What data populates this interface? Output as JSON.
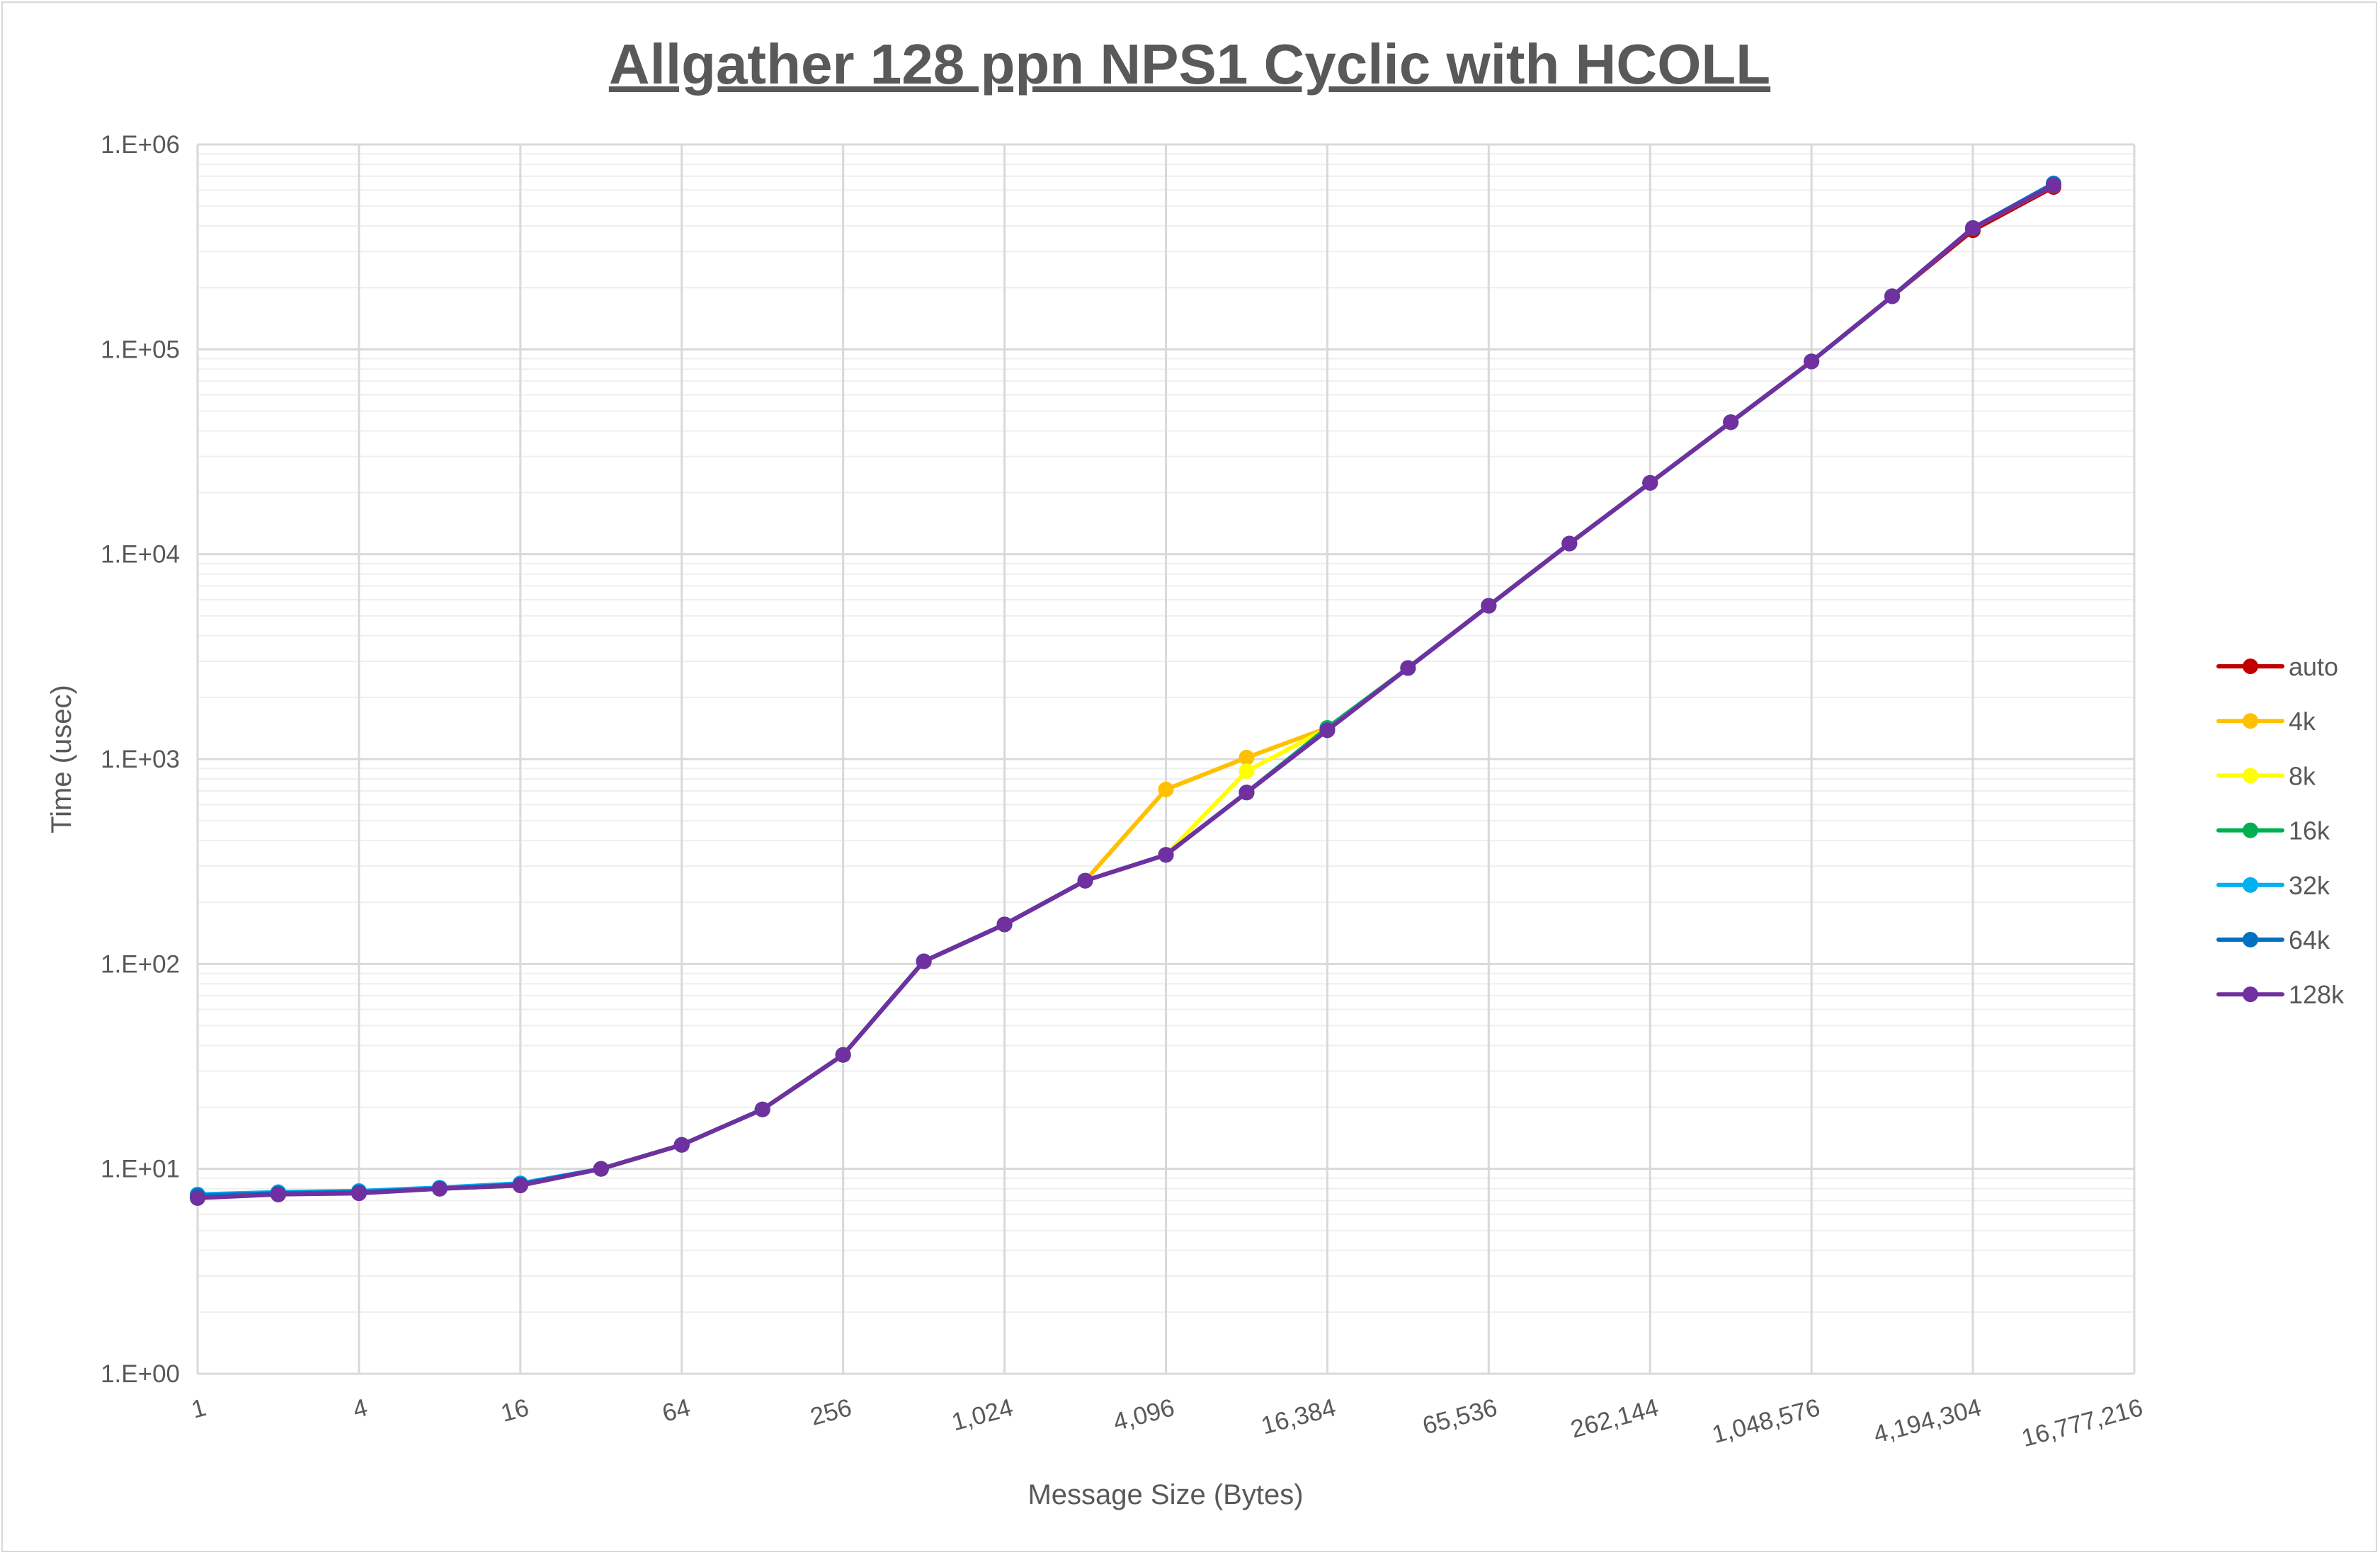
{
  "chart_data": {
    "type": "line",
    "title": "Allgather 128 ppn NPS1 Cyclic with HCOLL",
    "xlabel": "Message Size (Bytes)",
    "ylabel": "Time (usec)",
    "x_scale": "log2",
    "y_scale": "log10",
    "xlim": [
      1,
      16777216
    ],
    "ylim": [
      1,
      1000000
    ],
    "grid": true,
    "legend_position": "right",
    "x_tick_labels": [
      "1",
      "4",
      "16",
      "64",
      "256",
      "1,024",
      "4,096",
      "16,384",
      "65,536",
      "262,144",
      "1,048,576",
      "4,194,304",
      "16,777,216"
    ],
    "x_tick_values": [
      1,
      4,
      16,
      64,
      256,
      1024,
      4096,
      16384,
      65536,
      262144,
      1048576,
      4194304,
      16777216
    ],
    "y_tick_labels": [
      "1.E+00",
      "1.E+01",
      "1.E+02",
      "1.E+03",
      "1.E+04",
      "1.E+05",
      "1.E+06"
    ],
    "y_tick_values": [
      1,
      10,
      100,
      1000,
      10000,
      100000,
      1000000
    ],
    "x": [
      1,
      2,
      4,
      8,
      16,
      32,
      64,
      128,
      256,
      512,
      1024,
      2048,
      4096,
      8192,
      16384,
      32768,
      65536,
      131072,
      262144,
      524288,
      1048576,
      2097152,
      4194304,
      8388608
    ],
    "series": [
      {
        "name": "auto",
        "color": "#C00000",
        "values": [
          7.3,
          7.5,
          7.7,
          8.0,
          8.3,
          10,
          13.1,
          19.5,
          36,
          103,
          156,
          255,
          341,
          687,
          1400,
          2784,
          5600,
          11270,
          22300,
          44100,
          87300,
          181600,
          381000,
          620000
        ]
      },
      {
        "name": "4k",
        "color": "#FFC000",
        "values": [
          7.3,
          7.5,
          7.7,
          8.0,
          8.3,
          10,
          13.1,
          19.5,
          36,
          103,
          156,
          255,
          711,
          1017,
          1420,
          2784,
          5600,
          11270,
          22300,
          44100,
          87300,
          181600,
          391000,
          631000
        ]
      },
      {
        "name": "8k",
        "color": "#FFFF00",
        "values": [
          7.3,
          7.5,
          7.7,
          8.0,
          8.3,
          10,
          13.1,
          19.5,
          36,
          103,
          156,
          255,
          341,
          873,
          1410,
          2784,
          5600,
          11270,
          22300,
          44100,
          87300,
          181600,
          391000,
          631000
        ]
      },
      {
        "name": "16k",
        "color": "#00B050",
        "values": [
          7.3,
          7.5,
          7.7,
          8.0,
          8.3,
          10,
          13.1,
          19.5,
          36,
          103,
          156,
          255,
          341,
          687,
          1420,
          2784,
          5600,
          11270,
          22300,
          44100,
          87300,
          181600,
          391000,
          635000
        ]
      },
      {
        "name": "32k",
        "color": "#00B0F0",
        "values": [
          7.5,
          7.7,
          7.8,
          8.1,
          8.5,
          10,
          13.1,
          19.5,
          36,
          103,
          156,
          255,
          341,
          687,
          1390,
          2784,
          5600,
          11270,
          22300,
          44100,
          87300,
          181600,
          391000,
          640000
        ]
      },
      {
        "name": "64k",
        "color": "#0070C0",
        "values": [
          7.4,
          7.6,
          7.7,
          8.0,
          8.4,
          10,
          13.1,
          19.5,
          36,
          103,
          156,
          255,
          341,
          687,
          1383,
          2784,
          5600,
          11270,
          22300,
          44100,
          87300,
          181600,
          391000,
          645000
        ]
      },
      {
        "name": "128k",
        "color": "#7030A0",
        "values": [
          7.2,
          7.5,
          7.6,
          8.0,
          8.3,
          10,
          13.1,
          19.5,
          36,
          103,
          156,
          255,
          341,
          687,
          1383,
          2784,
          5600,
          11270,
          22300,
          44100,
          87300,
          181600,
          391000,
          631000
        ]
      }
    ]
  }
}
